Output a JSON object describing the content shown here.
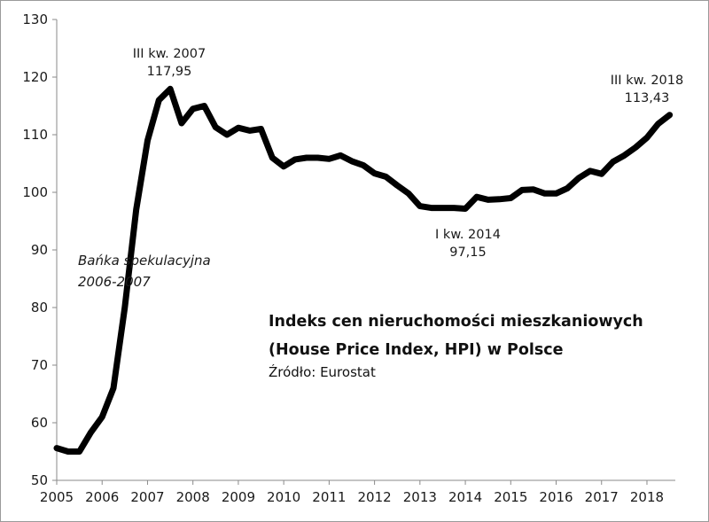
{
  "chart_data": {
    "type": "line",
    "title": "Indeks cen nieruchomości mieszkaniowych",
    "subtitle": "(House Price Index, HPI) w Polsce",
    "source": "Źródło: Eurostat",
    "xlabel": "",
    "ylabel": "",
    "xlim": [
      2005.0,
      2018.625
    ],
    "ylim": [
      50,
      130
    ],
    "yticks": [
      50,
      60,
      70,
      80,
      90,
      100,
      110,
      120,
      130
    ],
    "xticks": [
      2005,
      2006,
      2007,
      2008,
      2009,
      2010,
      2011,
      2012,
      2013,
      2014,
      2015,
      2016,
      2017,
      2018
    ],
    "grid": false,
    "line_color": "#000000",
    "series": [
      {
        "x": [
          2005.0,
          2005.25,
          2005.5,
          2005.75,
          2006.0,
          2006.25,
          2006.5,
          2006.75,
          2007.0,
          2007.25,
          2007.5,
          2007.75,
          2008.0,
          2008.25,
          2008.5,
          2008.75,
          2009.0,
          2009.25,
          2009.5,
          2009.75,
          2010.0,
          2010.25,
          2010.5,
          2010.75,
          2011.0,
          2011.25,
          2011.5,
          2011.75,
          2012.0,
          2012.25,
          2012.5,
          2012.75,
          2013.0,
          2013.25,
          2013.5,
          2013.75,
          2014.0,
          2014.25,
          2014.5,
          2014.75,
          2015.0,
          2015.25,
          2015.5,
          2015.75,
          2016.0,
          2016.25,
          2016.5,
          2016.75,
          2017.0,
          2017.25,
          2017.5,
          2017.75,
          2018.0,
          2018.25,
          2018.5
        ],
        "values": [
          55.6,
          55.0,
          55.0,
          58.3,
          61.0,
          66.0,
          80.0,
          97.0,
          109.0,
          116.0,
          117.95,
          112.0,
          114.5,
          115.0,
          111.3,
          110.0,
          111.2,
          110.7,
          111.0,
          106.0,
          104.5,
          105.7,
          106.0,
          106.0,
          105.8,
          106.4,
          105.4,
          104.7,
          103.3,
          102.7,
          101.2,
          99.8,
          97.6,
          97.3,
          97.3,
          97.3,
          97.15,
          99.2,
          98.7,
          98.8,
          99.0,
          100.4,
          100.5,
          99.8,
          99.8,
          100.7,
          102.5,
          103.7,
          103.2,
          105.3,
          106.4,
          107.8,
          109.5,
          111.9,
          113.43
        ]
      }
    ],
    "annotations": [
      {
        "label": "III kw. 2007",
        "value": "117,95"
      },
      {
        "label": "I kw. 2014",
        "value": "97,15"
      },
      {
        "label": "III kw. 2018",
        "value": "113,43"
      },
      {
        "line1": "Bańka spekulacyjna",
        "line2": "2006-2007"
      }
    ]
  }
}
